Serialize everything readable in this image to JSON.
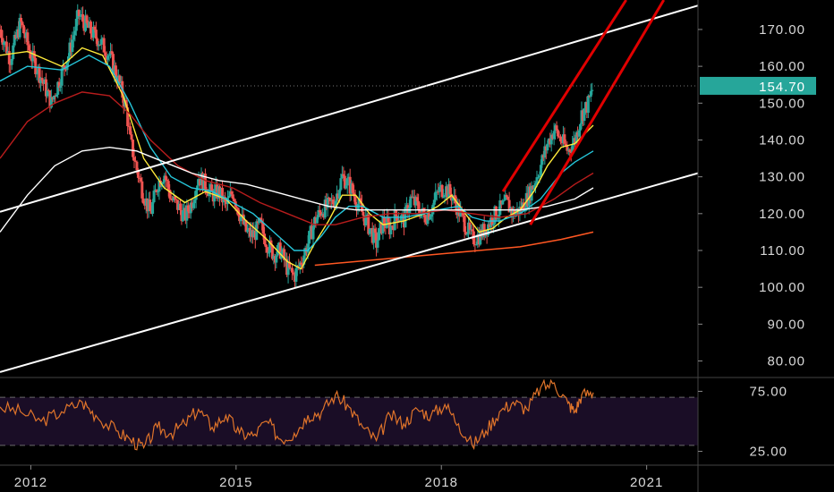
{
  "chart_data": [
    {
      "type": "candlestick",
      "panel": "price",
      "x_ticks": [
        "2012",
        "2015",
        "2018",
        "2021"
      ],
      "y_ticks": [
        "80.00",
        "90.00",
        "100.00",
        "110.00",
        "120.00",
        "130.00",
        "140.00",
        "150.00",
        "160.00",
        "170.00"
      ],
      "ylim": [
        76,
        178
      ],
      "xlim": [
        2011.6,
        2021.8
      ],
      "last_price": "154.70",
      "colors": {
        "up": "#26a69a",
        "down": "#ef5350",
        "badge": "#26a69a",
        "background": "#000000"
      },
      "price_points": [
        [
          2011.6,
          170
        ],
        [
          2011.75,
          162
        ],
        [
          2011.9,
          172
        ],
        [
          2012.05,
          163
        ],
        [
          2012.2,
          157
        ],
        [
          2012.35,
          150
        ],
        [
          2012.5,
          158
        ],
        [
          2012.6,
          163
        ],
        [
          2012.75,
          174
        ],
        [
          2012.9,
          170
        ],
        [
          2013.05,
          167
        ],
        [
          2013.2,
          163
        ],
        [
          2013.35,
          155
        ],
        [
          2013.45,
          148
        ],
        [
          2013.5,
          140
        ],
        [
          2013.6,
          132
        ],
        [
          2013.7,
          125
        ],
        [
          2013.8,
          120
        ],
        [
          2013.9,
          128
        ],
        [
          2014.0,
          131
        ],
        [
          2014.1,
          124
        ],
        [
          2014.2,
          122
        ],
        [
          2014.3,
          119
        ],
        [
          2014.4,
          123
        ],
        [
          2014.5,
          130
        ],
        [
          2014.6,
          128
        ],
        [
          2014.7,
          125
        ],
        [
          2014.8,
          126
        ],
        [
          2014.9,
          122
        ],
        [
          2015.0,
          126
        ],
        [
          2015.1,
          120
        ],
        [
          2015.2,
          115
        ],
        [
          2015.3,
          114
        ],
        [
          2015.4,
          117
        ],
        [
          2015.5,
          112
        ],
        [
          2015.6,
          109
        ],
        [
          2015.7,
          110
        ],
        [
          2015.8,
          105
        ],
        [
          2015.9,
          103
        ],
        [
          2016.0,
          107
        ],
        [
          2016.1,
          112
        ],
        [
          2016.2,
          118
        ],
        [
          2016.3,
          121
        ],
        [
          2016.4,
          122
        ],
        [
          2016.5,
          124
        ],
        [
          2016.6,
          130
        ],
        [
          2016.7,
          128
        ],
        [
          2016.8,
          124
        ],
        [
          2016.9,
          120
        ],
        [
          2017.0,
          116
        ],
        [
          2017.1,
          112
        ],
        [
          2017.2,
          118
        ],
        [
          2017.3,
          116
        ],
        [
          2017.4,
          120
        ],
        [
          2017.5,
          118
        ],
        [
          2017.6,
          124
        ],
        [
          2017.7,
          122
        ],
        [
          2017.8,
          119
        ],
        [
          2017.9,
          121
        ],
        [
          2018.0,
          126
        ],
        [
          2018.1,
          127
        ],
        [
          2018.2,
          125
        ],
        [
          2018.3,
          121
        ],
        [
          2018.4,
          117
        ],
        [
          2018.5,
          113
        ],
        [
          2018.6,
          114
        ],
        [
          2018.7,
          116
        ],
        [
          2018.8,
          119
        ],
        [
          2018.9,
          121
        ],
        [
          2019.0,
          123
        ],
        [
          2019.1,
          120
        ],
        [
          2019.2,
          121
        ],
        [
          2019.3,
          124
        ],
        [
          2019.4,
          128
        ],
        [
          2019.5,
          133
        ],
        [
          2019.6,
          139
        ],
        [
          2019.7,
          143
        ],
        [
          2019.8,
          140
        ],
        [
          2019.9,
          137
        ],
        [
          2020.0,
          140
        ],
        [
          2020.1,
          147
        ],
        [
          2020.2,
          150
        ],
        [
          2020.27,
          154.7
        ]
      ],
      "moving_averages": [
        {
          "name": "fast",
          "color": "#ffeb3b",
          "points": [
            [
              2011.6,
              163
            ],
            [
              2012.0,
              164
            ],
            [
              2012.5,
              160
            ],
            [
              2012.8,
              165
            ],
            [
              2013.1,
              163
            ],
            [
              2013.4,
              152
            ],
            [
              2013.7,
              135
            ],
            [
              2014.0,
              127
            ],
            [
              2014.3,
              123
            ],
            [
              2014.6,
              126
            ],
            [
              2014.9,
              124
            ],
            [
              2015.2,
              118
            ],
            [
              2015.5,
              113
            ],
            [
              2015.8,
              107
            ],
            [
              2016.0,
              105
            ],
            [
              2016.2,
              112
            ],
            [
              2016.4,
              118
            ],
            [
              2016.6,
              125
            ],
            [
              2016.8,
              125
            ],
            [
              2017.0,
              120
            ],
            [
              2017.2,
              117
            ],
            [
              2017.5,
              118
            ],
            [
              2017.8,
              120
            ],
            [
              2018.0,
              122
            ],
            [
              2018.2,
              125
            ],
            [
              2018.4,
              120
            ],
            [
              2018.6,
              115
            ],
            [
              2018.8,
              116
            ],
            [
              2019.0,
              119
            ],
            [
              2019.2,
              121
            ],
            [
              2019.4,
              126
            ],
            [
              2019.6,
              133
            ],
            [
              2019.8,
              138
            ],
            [
              2020.0,
              139
            ],
            [
              2020.27,
              144
            ]
          ]
        },
        {
          "name": "medium",
          "color": "#26c6da",
          "points": [
            [
              2011.6,
              156
            ],
            [
              2012.0,
              160
            ],
            [
              2012.5,
              159
            ],
            [
              2012.9,
              163
            ],
            [
              2013.2,
              160
            ],
            [
              2013.5,
              150
            ],
            [
              2013.8,
              138
            ],
            [
              2014.1,
              130
            ],
            [
              2014.4,
              127
            ],
            [
              2014.7,
              126
            ],
            [
              2015.0,
              123
            ],
            [
              2015.3,
              120
            ],
            [
              2015.6,
              115
            ],
            [
              2015.9,
              110
            ],
            [
              2016.1,
              110
            ],
            [
              2016.3,
              114
            ],
            [
              2016.5,
              119
            ],
            [
              2016.7,
              122
            ],
            [
              2016.9,
              122
            ],
            [
              2017.2,
              119
            ],
            [
              2017.5,
              119
            ],
            [
              2017.8,
              120
            ],
            [
              2018.0,
              121
            ],
            [
              2018.3,
              122
            ],
            [
              2018.5,
              119
            ],
            [
              2018.7,
              118
            ],
            [
              2018.9,
              118
            ],
            [
              2019.2,
              120
            ],
            [
              2019.5,
              124
            ],
            [
              2019.8,
              131
            ],
            [
              2020.0,
              134
            ],
            [
              2020.27,
              137
            ]
          ]
        },
        {
          "name": "slow",
          "color": "#b71c1c",
          "points": [
            [
              2011.6,
              135
            ],
            [
              2012.0,
              145
            ],
            [
              2012.4,
              150
            ],
            [
              2012.8,
              153
            ],
            [
              2013.2,
              152
            ],
            [
              2013.5,
              147
            ],
            [
              2013.8,
              140
            ],
            [
              2014.2,
              133
            ],
            [
              2014.6,
              129
            ],
            [
              2015.0,
              127
            ],
            [
              2015.4,
              123
            ],
            [
              2015.8,
              120
            ],
            [
              2016.2,
              117
            ],
            [
              2016.5,
              117
            ],
            [
              2016.9,
              119
            ],
            [
              2017.3,
              120
            ],
            [
              2017.7,
              120
            ],
            [
              2018.1,
              121
            ],
            [
              2018.5,
              120
            ],
            [
              2018.9,
              119
            ],
            [
              2019.3,
              120
            ],
            [
              2019.7,
              124
            ],
            [
              2020.0,
              128
            ],
            [
              2020.27,
              131
            ]
          ]
        },
        {
          "name": "long",
          "color": "#ffffff",
          "points": [
            [
              2011.6,
              115
            ],
            [
              2012.0,
              125
            ],
            [
              2012.4,
              133
            ],
            [
              2012.8,
              137
            ],
            [
              2013.2,
              138
            ],
            [
              2013.6,
              137
            ],
            [
              2014.0,
              134
            ],
            [
              2014.4,
              131
            ],
            [
              2014.8,
              129
            ],
            [
              2015.2,
              128
            ],
            [
              2015.6,
              126
            ],
            [
              2016.0,
              124
            ],
            [
              2016.4,
              122
            ],
            [
              2016.8,
              121
            ],
            [
              2017.2,
              121
            ],
            [
              2017.6,
              121
            ],
            [
              2018.0,
              121
            ],
            [
              2018.4,
              121
            ],
            [
              2018.8,
              121
            ],
            [
              2019.2,
              121
            ],
            [
              2019.6,
              122
            ],
            [
              2020.0,
              124
            ],
            [
              2020.27,
              127
            ]
          ]
        },
        {
          "name": "trend",
          "color": "#ff5722",
          "points": [
            [
              2016.2,
              106
            ],
            [
              2016.8,
              107
            ],
            [
              2017.4,
              108
            ],
            [
              2018.0,
              109
            ],
            [
              2018.6,
              110
            ],
            [
              2019.2,
              111
            ],
            [
              2019.8,
              113
            ],
            [
              2020.27,
              115
            ]
          ]
        }
      ],
      "drawings": [
        {
          "kind": "trendline",
          "color": "#ffffff",
          "from": [
            2011.6,
            120.5
          ],
          "to": [
            2021.8,
            176.5
          ]
        },
        {
          "kind": "trendline",
          "color": "#ffffff",
          "from": [
            2011.6,
            77
          ],
          "to": [
            2021.8,
            131
          ]
        },
        {
          "kind": "trendline",
          "color": "#e00000",
          "from": [
            2018.95,
            126
          ],
          "to": [
            2020.75,
            178
          ]
        },
        {
          "kind": "trendline",
          "color": "#e00000",
          "from": [
            2019.35,
            117
          ],
          "to": [
            2021.3,
            178
          ]
        },
        {
          "kind": "dotted_line",
          "color": "#777777",
          "y": 154.7
        }
      ]
    },
    {
      "type": "line",
      "panel": "rsi",
      "y_ticks": [
        "25.00",
        "75.00"
      ],
      "ylim": [
        15,
        85
      ],
      "band": [
        30,
        70
      ],
      "color": "#e0742a",
      "band_fill": "#1a0d26",
      "points": [
        [
          2011.6,
          62
        ],
        [
          2011.9,
          58
        ],
        [
          2012.2,
          50
        ],
        [
          2012.5,
          58
        ],
        [
          2012.8,
          66
        ],
        [
          2013.0,
          55
        ],
        [
          2013.3,
          42
        ],
        [
          2013.5,
          35
        ],
        [
          2013.7,
          28
        ],
        [
          2013.9,
          45
        ],
        [
          2014.1,
          40
        ],
        [
          2014.3,
          48
        ],
        [
          2014.5,
          60
        ],
        [
          2014.7,
          45
        ],
        [
          2014.9,
          55
        ],
        [
          2015.1,
          40
        ],
        [
          2015.3,
          38
        ],
        [
          2015.5,
          50
        ],
        [
          2015.7,
          35
        ],
        [
          2015.9,
          40
        ],
        [
          2016.1,
          55
        ],
        [
          2016.3,
          58
        ],
        [
          2016.5,
          72
        ],
        [
          2016.7,
          62
        ],
        [
          2016.9,
          45
        ],
        [
          2017.1,
          34
        ],
        [
          2017.3,
          55
        ],
        [
          2017.5,
          48
        ],
        [
          2017.7,
          60
        ],
        [
          2017.9,
          55
        ],
        [
          2018.1,
          64
        ],
        [
          2018.3,
          48
        ],
        [
          2018.5,
          30
        ],
        [
          2018.7,
          42
        ],
        [
          2018.9,
          58
        ],
        [
          2019.1,
          66
        ],
        [
          2019.3,
          60
        ],
        [
          2019.5,
          78
        ],
        [
          2019.7,
          82
        ],
        [
          2019.9,
          65
        ],
        [
          2020.0,
          58
        ],
        [
          2020.1,
          72
        ],
        [
          2020.27,
          74
        ]
      ]
    }
  ]
}
